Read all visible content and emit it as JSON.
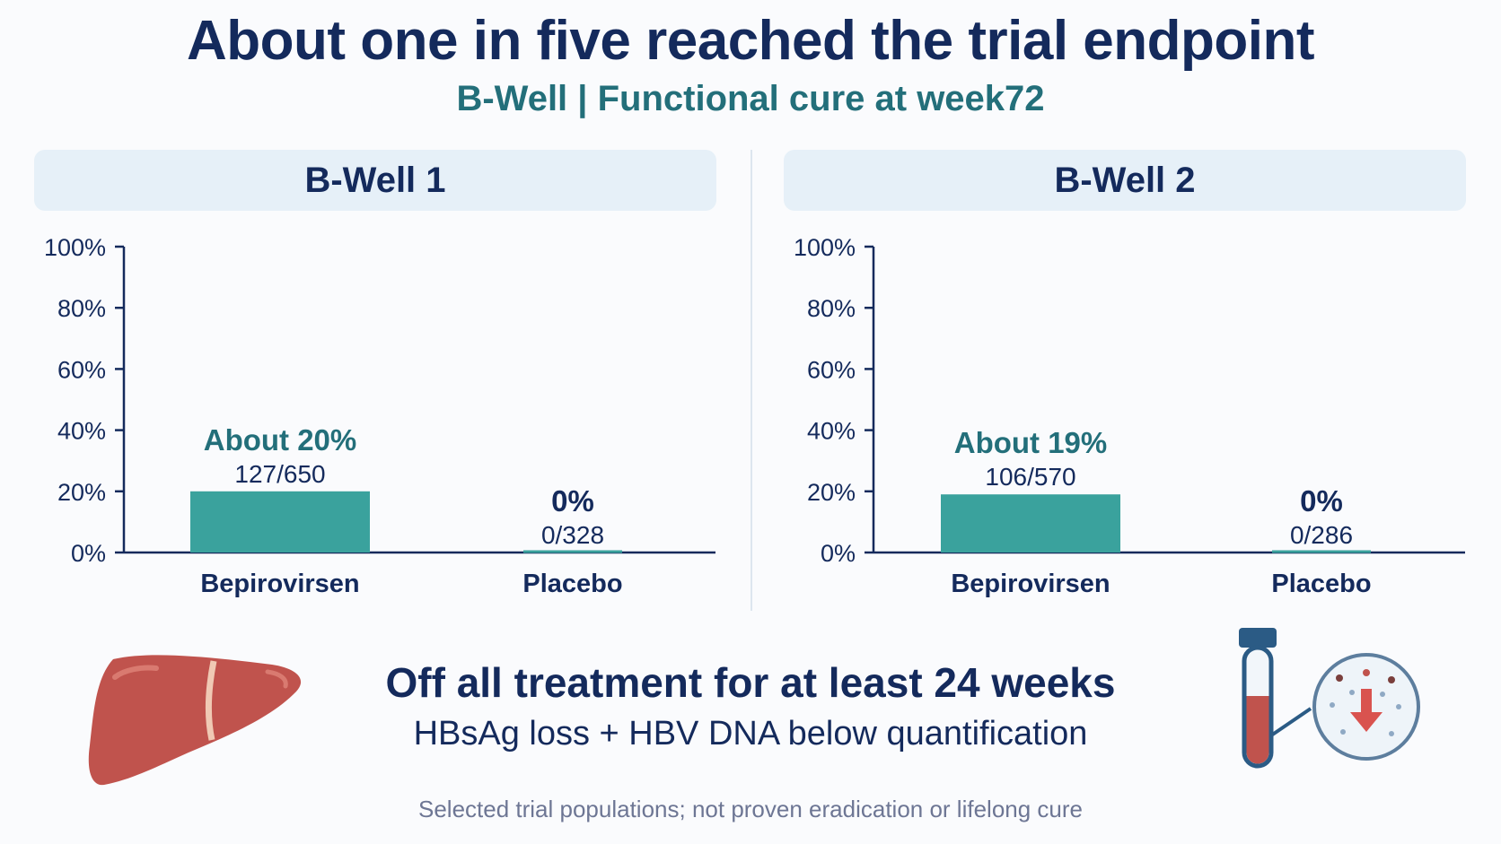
{
  "title": "About one in five reached the trial endpoint",
  "subtitle": "B-Well | Functional cure at week72",
  "footer": {
    "headline": "Off all treatment for at least 24 weeks",
    "criteria": "HBsAg loss + HBV DNA below quantification",
    "note": "Selected trial populations; not proven eradication or lifelong cure"
  },
  "colors": {
    "bar": "#3aa29d",
    "axis": "#142a5c",
    "label_highlight": "#236f7a",
    "header_bg": "#e6f0f8"
  },
  "icons": [
    "liver-icon",
    "blood-tube-icon",
    "magnifier-down-arrow-icon"
  ],
  "chart_data": [
    {
      "type": "bar",
      "title": "B-Well 1",
      "categories": [
        "Bepirovirsen",
        "Placebo"
      ],
      "values": [
        20,
        0
      ],
      "value_labels": [
        "About 20%",
        "0%"
      ],
      "count_labels": [
        "127/650",
        "0/328"
      ],
      "ylim": [
        0,
        100
      ],
      "yticks": [
        "0%",
        "20%",
        "40%",
        "60%",
        "80%",
        "100%"
      ],
      "ytick_values": [
        0,
        20,
        40,
        60,
        80,
        100
      ],
      "grid": false
    },
    {
      "type": "bar",
      "title": "B-Well 2",
      "categories": [
        "Bepirovirsen",
        "Placebo"
      ],
      "values": [
        19,
        0
      ],
      "value_labels": [
        "About 19%",
        "0%"
      ],
      "count_labels": [
        "106/570",
        "0/286"
      ],
      "ylim": [
        0,
        100
      ],
      "yticks": [
        "0%",
        "20%",
        "40%",
        "60%",
        "80%",
        "100%"
      ],
      "ytick_values": [
        0,
        20,
        40,
        60,
        80,
        100
      ],
      "grid": false
    }
  ]
}
